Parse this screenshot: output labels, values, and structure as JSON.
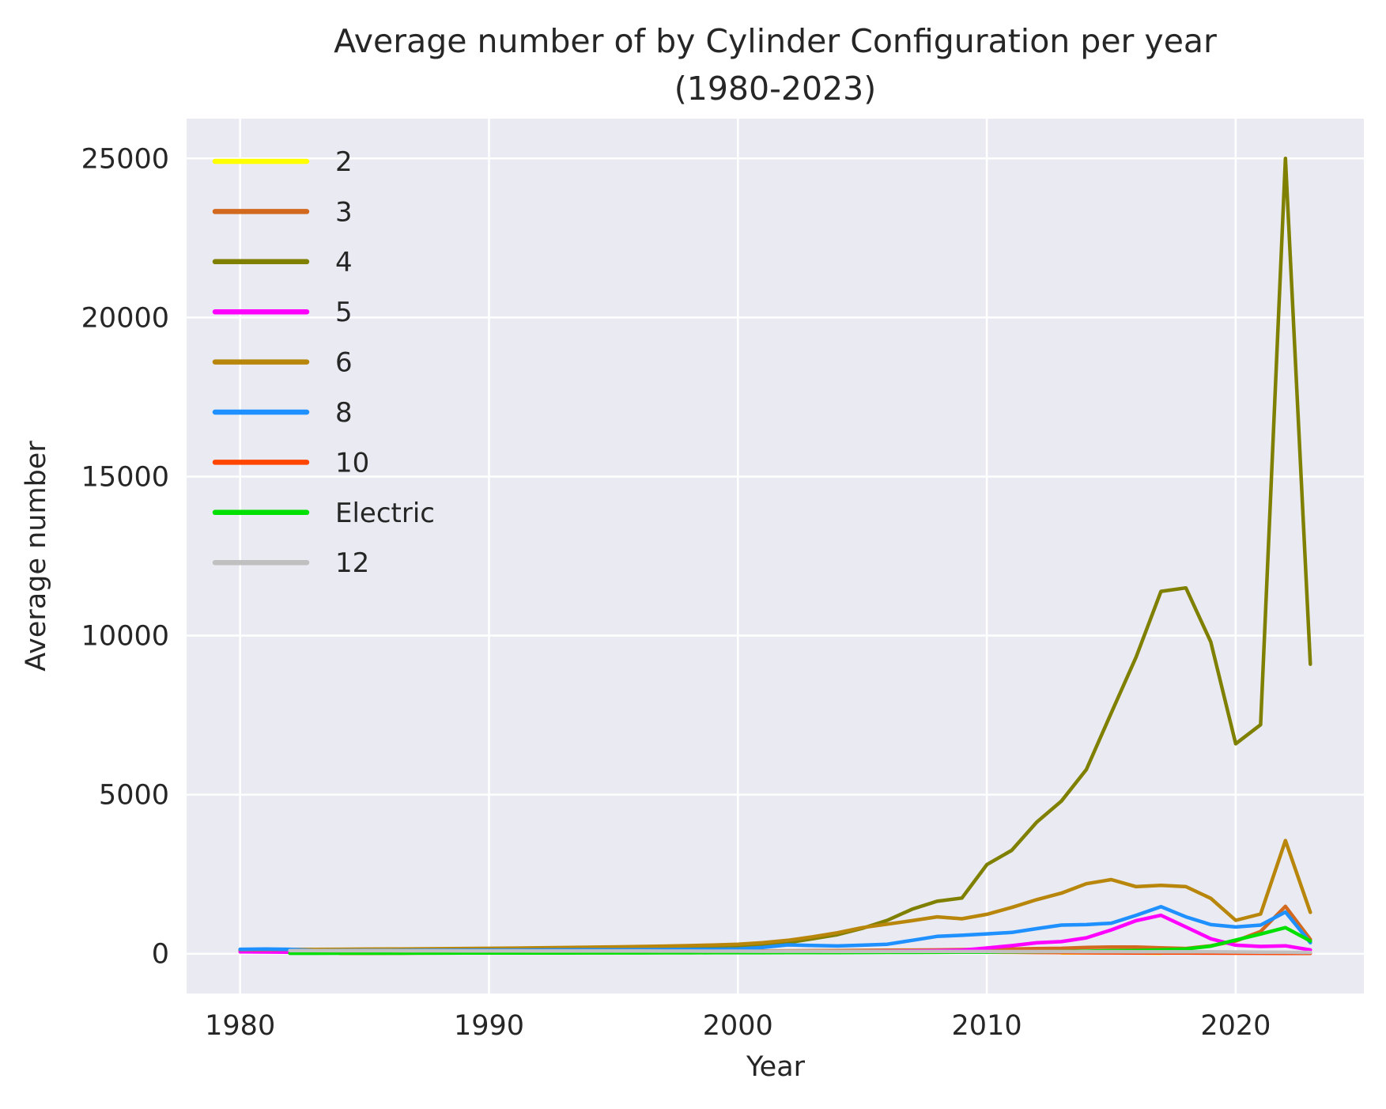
{
  "figure": {
    "title_line1": "Average number of by Cylinder Configuration per year",
    "title_line2": "(1980-2023)"
  },
  "chart_data": {
    "type": "line",
    "title": "Average number of by Cylinder Configuration per year (1980-2023)",
    "xlabel": "Year",
    "ylabel": "Average number",
    "grid": true,
    "legend_position": "upper-left",
    "background": "#eaeaf2",
    "grid_color": "#ffffff",
    "text_color": "#262626",
    "xlim": [
      1977.85,
      2025.15
    ],
    "ylim": [
      -1250,
      26250
    ],
    "xticks": [
      1980,
      1990,
      2000,
      2010,
      2020
    ],
    "yticks": [
      0,
      5000,
      10000,
      15000,
      20000,
      25000
    ],
    "x": [
      1980,
      1981,
      1982,
      1983,
      1984,
      1985,
      1986,
      1987,
      1988,
      1989,
      1990,
      1991,
      1992,
      1993,
      1994,
      1995,
      1996,
      1997,
      1998,
      1999,
      2000,
      2001,
      2002,
      2003,
      2004,
      2005,
      2006,
      2007,
      2008,
      2009,
      2010,
      2011,
      2012,
      2013,
      2014,
      2015,
      2016,
      2017,
      2018,
      2019,
      2020,
      2021,
      2022,
      2023
    ],
    "series": [
      {
        "name": "2",
        "color": "#ffff00",
        "values": [
          null,
          null,
          null,
          null,
          null,
          null,
          null,
          null,
          null,
          null,
          null,
          null,
          null,
          null,
          null,
          null,
          null,
          null,
          null,
          null,
          null,
          null,
          null,
          null,
          null,
          null,
          null,
          null,
          null,
          null,
          null,
          null,
          null,
          25,
          30,
          35,
          25,
          15,
          null,
          null,
          null,
          null,
          null,
          null
        ]
      },
      {
        "name": "3",
        "color": "#d2691e",
        "values": [
          110,
          105,
          100,
          95,
          90,
          85,
          82,
          80,
          78,
          76,
          75,
          74,
          74,
          74,
          75,
          76,
          78,
          80,
          82,
          84,
          86,
          88,
          90,
          95,
          100,
          105,
          110,
          115,
          120,
          130,
          140,
          150,
          160,
          170,
          200,
          210,
          210,
          185,
          165,
          250,
          400,
          700,
          1490,
          450
        ]
      },
      {
        "name": "4",
        "color": "#808000",
        "values": [
          120,
          121,
          123,
          125,
          128,
          131,
          134,
          138,
          142,
          146,
          150,
          155,
          160,
          166,
          172,
          179,
          187,
          200,
          215,
          232,
          250,
          290,
          350,
          470,
          600,
          800,
          1050,
          1400,
          1650,
          1750,
          2800,
          3250,
          4130,
          4800,
          5790,
          7570,
          9330,
          11390,
          11500,
          9800,
          6600,
          7200,
          25000,
          9100
        ]
      },
      {
        "name": "5",
        "color": "#ff00ff",
        "values": [
          60,
          55,
          50,
          46,
          44,
          43,
          42,
          42,
          42,
          43,
          44,
          45,
          46,
          47,
          48,
          50,
          52,
          54,
          56,
          58,
          60,
          62,
          65,
          68,
          72,
          76,
          80,
          85,
          95,
          110,
          180,
          255,
          345,
          380,
          500,
          750,
          1040,
          1210,
          840,
          470,
          270,
          230,
          250,
          120
        ]
      },
      {
        "name": "6",
        "color": "#b8860b",
        "values": [
          130,
          132,
          134,
          137,
          140,
          144,
          148,
          153,
          158,
          164,
          170,
          177,
          185,
          194,
          204,
          215,
          227,
          240,
          255,
          275,
          300,
          350,
          420,
          530,
          660,
          820,
          930,
          1040,
          1160,
          1100,
          1240,
          1455,
          1700,
          1905,
          2200,
          2330,
          2110,
          2150,
          2110,
          1740,
          1050,
          1250,
          3560,
          1300
        ]
      },
      {
        "name": "8",
        "color": "#1e90ff",
        "values": [
          140,
          150,
          140,
          100,
          102,
          104,
          106,
          108,
          110,
          112,
          114,
          116,
          118,
          120,
          122,
          124,
          127,
          130,
          135,
          140,
          150,
          200,
          280,
          260,
          245,
          270,
          300,
          420,
          545,
          580,
          625,
          670,
          790,
          900,
          915,
          960,
          1210,
          1480,
          1160,
          915,
          840,
          900,
          1310,
          350
        ]
      },
      {
        "name": "10",
        "color": "#ff4500",
        "values": [
          null,
          null,
          null,
          null,
          15,
          16,
          18,
          20,
          22,
          24,
          26,
          28,
          30,
          32,
          34,
          36,
          38,
          40,
          42,
          44,
          46,
          48,
          50,
          52,
          55,
          58,
          60,
          60,
          58,
          55,
          50,
          45,
          40,
          35,
          30,
          28,
          26,
          24,
          22,
          20,
          18,
          15,
          12,
          10
        ]
      },
      {
        "name": "Electric",
        "color": "#00e000",
        "values": [
          null,
          null,
          15,
          16,
          17,
          18,
          19,
          20,
          21,
          22,
          23,
          24,
          25,
          26,
          27,
          28,
          29,
          30,
          31,
          32,
          33,
          34,
          35,
          36,
          38,
          40,
          42,
          44,
          46,
          48,
          50,
          55,
          60,
          70,
          80,
          95,
          100,
          120,
          150,
          240,
          430,
          620,
          820,
          400
        ]
      },
      {
        "name": "12",
        "color": "#c0c0c0",
        "values": [
          null,
          null,
          100,
          98,
          96,
          95,
          94,
          93,
          92,
          91,
          90,
          89,
          88,
          87,
          86,
          85,
          84,
          83,
          82,
          81,
          80,
          79,
          78,
          77,
          76,
          75,
          74,
          73,
          72,
          71,
          70,
          69,
          68,
          67,
          66,
          65,
          64,
          63,
          62,
          60,
          55,
          50,
          45,
          40
        ]
      }
    ]
  }
}
